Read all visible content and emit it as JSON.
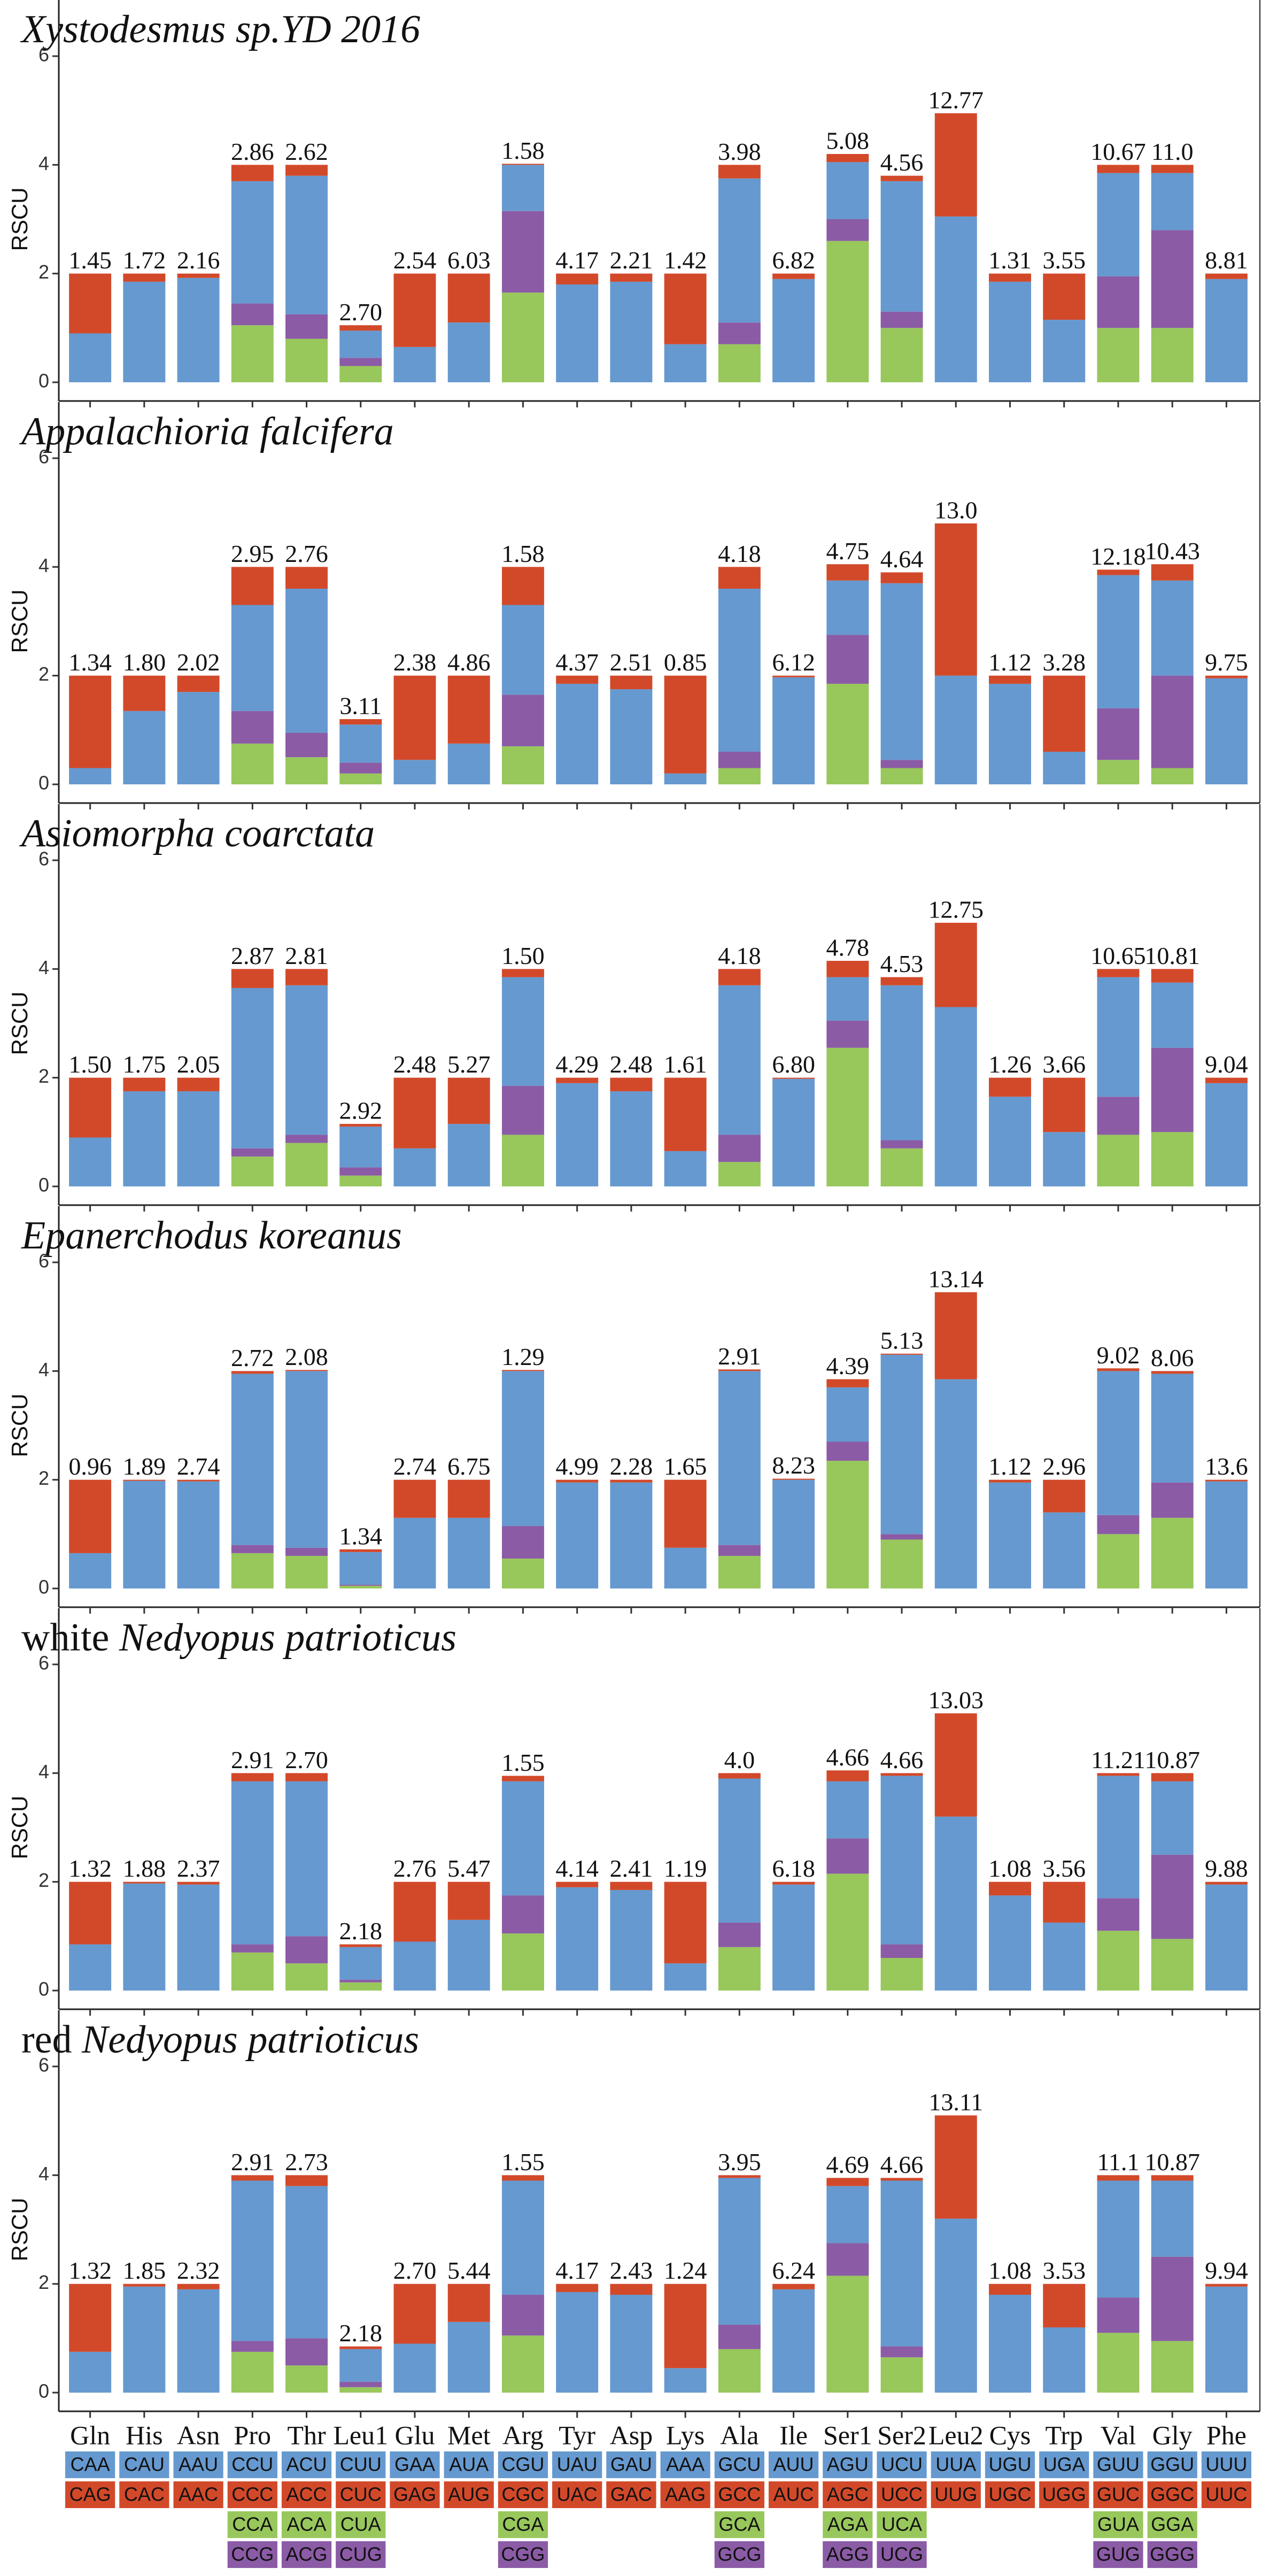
{
  "charts": [
    {
      "type": "stacked_bar",
      "title": "Xystodesmus sp.YD 2016",
      "y_label": "RSCU",
      "ylim": [
        0,
        6
      ],
      "yticks": [
        0,
        2,
        4,
        6
      ],
      "series": [
        {
          "color": "#98c75c",
          "values": [
            null,
            null,
            null,
            1.05,
            0.8,
            0.3,
            null,
            null,
            1.65,
            null,
            null,
            null,
            0.7,
            null,
            2.6,
            1.0,
            null,
            null,
            null,
            1.0,
            1.0,
            null
          ]
        },
        {
          "color": "#8b5ba6",
          "values": [
            null,
            null,
            null,
            0.4,
            0.45,
            0.15,
            null,
            null,
            1.5,
            null,
            null,
            null,
            0.4,
            null,
            0.4,
            0.3,
            null,
            null,
            null,
            0.95,
            1.8,
            null
          ]
        },
        {
          "color": "#6699cf",
          "values": [
            0.9,
            1.85,
            1.92,
            2.25,
            2.55,
            0.5,
            0.65,
            1.1,
            0.85,
            1.8,
            1.85,
            0.7,
            2.65,
            1.9,
            1.05,
            2.4,
            3.05,
            1.85,
            1.15,
            1.9,
            1.05,
            1.9
          ]
        },
        {
          "color": "#d2492a",
          "values": [
            1.1,
            0.15,
            0.08,
            0.3,
            0.2,
            0.1,
            1.35,
            0.9,
            0.02,
            0.2,
            0.15,
            1.3,
            0.25,
            0.1,
            0.15,
            0.1,
            1.9,
            0.15,
            0.85,
            0.15,
            0.15,
            0.1
          ]
        }
      ],
      "bar_labels": [
        "1.45",
        "1.72",
        "2.16",
        "2.86",
        "2.62",
        "2.70",
        "2.54",
        "6.03",
        "1.58",
        "4.17",
        "2.21",
        "1.42",
        "3.98",
        "6.82",
        "5.08",
        "4.56",
        "12.77",
        "1.31",
        "3.55",
        "10.67",
        "11.0",
        "8.81"
      ]
    },
    {
      "type": "stacked_bar",
      "title": "Appalachioria falcifera",
      "y_label": "RSCU",
      "ylim": [
        0,
        6
      ],
      "yticks": [
        0,
        2,
        4,
        6
      ],
      "series": [
        {
          "color": "#98c75c",
          "values": [
            null,
            null,
            null,
            0.75,
            0.5,
            0.2,
            null,
            null,
            0.7,
            null,
            null,
            null,
            0.3,
            null,
            1.85,
            0.3,
            null,
            null,
            null,
            0.45,
            0.3,
            null
          ]
        },
        {
          "color": "#8b5ba6",
          "values": [
            null,
            null,
            null,
            0.6,
            0.45,
            0.2,
            null,
            null,
            0.95,
            null,
            null,
            null,
            0.3,
            null,
            0.9,
            0.15,
            null,
            null,
            null,
            0.95,
            1.7,
            null
          ]
        },
        {
          "color": "#6699cf",
          "values": [
            0.3,
            1.35,
            1.7,
            1.95,
            2.65,
            0.7,
            0.45,
            0.75,
            1.65,
            1.85,
            1.75,
            0.2,
            3.0,
            1.97,
            1.0,
            3.25,
            2.0,
            1.85,
            0.6,
            2.45,
            1.75,
            1.95
          ]
        },
        {
          "color": "#d2492a",
          "values": [
            1.7,
            0.65,
            0.3,
            0.7,
            0.4,
            0.1,
            1.55,
            1.25,
            0.7,
            0.15,
            0.25,
            1.8,
            0.4,
            0.03,
            0.3,
            0.2,
            2.8,
            0.15,
            1.4,
            0.1,
            0.3,
            0.05
          ]
        }
      ],
      "bar_labels": [
        "1.34",
        "1.80",
        "2.02",
        "2.95",
        "2.76",
        "3.11",
        "2.38",
        "4.86",
        "1.58",
        "4.37",
        "2.51",
        "0.85",
        "4.18",
        "6.12",
        "4.75",
        "4.64",
        "13.0",
        "1.12",
        "3.28",
        "12.18",
        "10.43",
        "9.75"
      ]
    },
    {
      "type": "stacked_bar",
      "title": "Asiomorpha coarctata",
      "y_label": "RSCU",
      "ylim": [
        0,
        6
      ],
      "yticks": [
        0,
        2,
        4,
        6
      ],
      "series": [
        {
          "color": "#98c75c",
          "values": [
            null,
            null,
            null,
            0.55,
            0.8,
            0.2,
            null,
            null,
            0.95,
            null,
            null,
            null,
            0.45,
            null,
            2.55,
            0.7,
            null,
            null,
            null,
            0.95,
            1.0,
            null
          ]
        },
        {
          "color": "#8b5ba6",
          "values": [
            null,
            null,
            null,
            0.15,
            0.15,
            0.15,
            null,
            null,
            0.9,
            null,
            null,
            null,
            0.5,
            null,
            0.5,
            0.15,
            null,
            null,
            null,
            0.7,
            1.55,
            null
          ]
        },
        {
          "color": "#6699cf",
          "values": [
            0.9,
            1.75,
            1.75,
            2.95,
            2.75,
            0.75,
            0.7,
            1.15,
            2.0,
            1.9,
            1.75,
            0.65,
            2.75,
            1.98,
            0.8,
            2.85,
            3.3,
            1.65,
            1.0,
            2.2,
            1.2,
            1.9
          ]
        },
        {
          "color": "#d2492a",
          "values": [
            1.1,
            0.25,
            0.25,
            0.35,
            0.3,
            0.05,
            1.3,
            0.85,
            0.15,
            0.1,
            0.25,
            1.35,
            0.3,
            0.02,
            0.3,
            0.15,
            1.55,
            0.35,
            1.0,
            0.15,
            0.25,
            0.1
          ]
        }
      ],
      "bar_labels": [
        "1.50",
        "1.75",
        "2.05",
        "2.87",
        "2.81",
        "2.92",
        "2.48",
        "5.27",
        "1.50",
        "4.29",
        "2.48",
        "1.61",
        "4.18",
        "6.80",
        "4.78",
        "4.53",
        "12.75",
        "1.26",
        "3.66",
        "10.65",
        "10.81",
        "9.04"
      ]
    },
    {
      "type": "stacked_bar",
      "title": "Epanerchodus koreanus",
      "y_label": "RSCU",
      "ylim": [
        0,
        6
      ],
      "yticks": [
        0,
        2,
        4,
        6
      ],
      "series": [
        {
          "color": "#98c75c",
          "values": [
            null,
            null,
            null,
            0.65,
            0.6,
            0.05,
            null,
            null,
            0.55,
            null,
            null,
            null,
            0.6,
            null,
            2.35,
            0.9,
            null,
            null,
            null,
            1.0,
            1.3,
            null
          ]
        },
        {
          "color": "#8b5ba6",
          "values": [
            null,
            null,
            null,
            0.15,
            0.15,
            0.02,
            null,
            null,
            0.6,
            null,
            null,
            null,
            0.2,
            null,
            0.35,
            0.1,
            null,
            null,
            null,
            0.35,
            0.65,
            null
          ]
        },
        {
          "color": "#6699cf",
          "values": [
            0.65,
            1.98,
            1.97,
            3.15,
            3.25,
            0.6,
            1.3,
            1.3,
            2.85,
            1.95,
            1.95,
            0.75,
            3.2,
            2.0,
            1.0,
            3.3,
            3.85,
            1.95,
            1.4,
            2.65,
            2.0,
            1.97
          ]
        },
        {
          "color": "#d2492a",
          "values": [
            1.35,
            0.02,
            0.03,
            0.05,
            0.02,
            0.05,
            0.7,
            0.7,
            0.02,
            0.05,
            0.05,
            1.25,
            0.03,
            0.02,
            0.15,
            0.02,
            1.6,
            0.05,
            0.6,
            0.05,
            0.05,
            0.03
          ]
        }
      ],
      "bar_labels": [
        "0.96",
        "1.89",
        "2.74",
        "2.72",
        "2.08",
        "1.34",
        "2.74",
        "6.75",
        "1.29",
        "4.99",
        "2.28",
        "1.65",
        "2.91",
        "8.23",
        "4.39",
        "5.13",
        "13.14",
        "1.12",
        "2.96",
        "9.02",
        "8.06",
        "13.6"
      ]
    },
    {
      "type": "stacked_bar",
      "title_prefix": "white",
      "title": "Nedyopus patrioticus",
      "y_label": "RSCU",
      "ylim": [
        0,
        6
      ],
      "yticks": [
        0,
        2,
        4,
        6
      ],
      "series": [
        {
          "color": "#98c75c",
          "values": [
            null,
            null,
            null,
            0.7,
            0.5,
            0.15,
            null,
            null,
            1.05,
            null,
            null,
            null,
            0.8,
            null,
            2.15,
            0.6,
            null,
            null,
            null,
            1.1,
            0.95,
            null
          ]
        },
        {
          "color": "#8b5ba6",
          "values": [
            null,
            null,
            null,
            0.15,
            0.5,
            0.05,
            null,
            null,
            0.7,
            null,
            null,
            null,
            0.45,
            null,
            0.65,
            0.25,
            null,
            null,
            null,
            0.6,
            1.55,
            null
          ]
        },
        {
          "color": "#6699cf",
          "values": [
            0.85,
            1.97,
            1.95,
            3.0,
            2.85,
            0.6,
            0.9,
            1.3,
            2.1,
            1.9,
            1.85,
            0.5,
            2.65,
            1.95,
            1.05,
            3.1,
            3.2,
            1.75,
            1.25,
            2.25,
            1.35,
            1.95
          ]
        },
        {
          "color": "#d2492a",
          "values": [
            1.15,
            0.03,
            0.05,
            0.15,
            0.15,
            0.05,
            1.1,
            0.7,
            0.1,
            0.1,
            0.15,
            1.5,
            0.1,
            0.05,
            0.2,
            0.05,
            1.9,
            0.25,
            0.75,
            0.05,
            0.15,
            0.05
          ]
        }
      ],
      "bar_labels": [
        "1.32",
        "1.88",
        "2.37",
        "2.91",
        "2.70",
        "2.18",
        "2.76",
        "5.47",
        "1.55",
        "4.14",
        "2.41",
        "1.19",
        "4.0",
        "6.18",
        "4.66",
        "4.66",
        "13.03",
        "1.08",
        "3.56",
        "11.21",
        "10.87",
        "9.88"
      ]
    },
    {
      "type": "stacked_bar",
      "title_prefix": "red",
      "title": "Nedyopus patrioticus",
      "y_label": "RSCU",
      "ylim": [
        0,
        6
      ],
      "yticks": [
        0,
        2,
        4,
        6
      ],
      "categories": [
        "Gln",
        "His",
        "Asn",
        "Pro",
        "Thr",
        "Leu1",
        "Glu",
        "Met",
        "Arg",
        "Tyr",
        "Asp",
        "Lys",
        "Ala",
        "Ile",
        "Ser1",
        "Ser2",
        "Leu2",
        "Cys",
        "Trp",
        "Val",
        "Gly",
        "Phe"
      ],
      "series": [
        {
          "color": "#98c75c",
          "values": [
            null,
            null,
            null,
            0.75,
            0.5,
            0.1,
            null,
            null,
            1.05,
            null,
            null,
            null,
            0.8,
            null,
            2.15,
            0.65,
            null,
            null,
            null,
            1.1,
            0.95,
            null
          ]
        },
        {
          "color": "#8b5ba6",
          "values": [
            null,
            null,
            null,
            0.2,
            0.5,
            0.1,
            null,
            null,
            0.75,
            null,
            null,
            null,
            0.45,
            null,
            0.6,
            0.2,
            null,
            null,
            null,
            0.65,
            1.55,
            null
          ]
        },
        {
          "color": "#6699cf",
          "values": [
            0.75,
            1.95,
            1.9,
            2.95,
            2.8,
            0.6,
            0.9,
            1.3,
            2.1,
            1.85,
            1.8,
            0.45,
            2.7,
            1.9,
            1.05,
            3.05,
            3.2,
            1.8,
            1.2,
            2.15,
            1.4,
            1.95
          ]
        },
        {
          "color": "#d2492a",
          "values": [
            1.25,
            0.05,
            0.1,
            0.1,
            0.2,
            0.05,
            1.1,
            0.7,
            0.1,
            0.15,
            0.2,
            1.55,
            0.05,
            0.1,
            0.15,
            0.05,
            1.9,
            0.2,
            0.8,
            0.1,
            0.1,
            0.05
          ]
        }
      ],
      "bar_labels": [
        "1.32",
        "1.85",
        "2.32",
        "2.91",
        "2.73",
        "2.18",
        "2.70",
        "5.44",
        "1.55",
        "4.17",
        "2.43",
        "1.24",
        "3.95",
        "6.24",
        "4.69",
        "4.66",
        "13.11",
        "1.08",
        "3.53",
        "11.1",
        "10.87",
        "9.94"
      ]
    }
  ],
  "codon_table": {
    "rows": [
      {
        "color": "#6699cf",
        "codons": [
          "CAA",
          "CAU",
          "AAU",
          "CCU",
          "ACU",
          "CUU",
          "GAA",
          "AUA",
          "CGU",
          "UAU",
          "GAU",
          "AAA",
          "GCU",
          "AUU",
          "AGU",
          "UCU",
          "UUA",
          "UGU",
          "UGA",
          "GUU",
          "GGU",
          "UUU"
        ]
      },
      {
        "color": "#d2492a",
        "codons": [
          "CAG",
          "CAC",
          "AAC",
          "CCC",
          "ACC",
          "CUC",
          "GAG",
          "AUG",
          "CGC",
          "UAC",
          "GAC",
          "AAG",
          "GCC",
          "AUC",
          "AGC",
          "UCC",
          "UUG",
          "UGC",
          "UGG",
          "GUC",
          "GGC",
          "UUC"
        ]
      },
      {
        "color": "#98c75c",
        "codons": [
          null,
          null,
          null,
          "CCA",
          "ACA",
          "CUA",
          null,
          null,
          "CGA",
          null,
          null,
          null,
          "GCA",
          null,
          "AGA",
          "UCA",
          null,
          null,
          null,
          "GUA",
          "GGA",
          null
        ]
      },
      {
        "color": "#8b5ba6",
        "codons": [
          null,
          null,
          null,
          "CCG",
          "ACG",
          "CUG",
          null,
          null,
          "CGG",
          null,
          null,
          null,
          "GCG",
          null,
          "AGG",
          "UCG",
          null,
          null,
          null,
          "GUG",
          "GGG",
          null
        ]
      }
    ]
  }
}
